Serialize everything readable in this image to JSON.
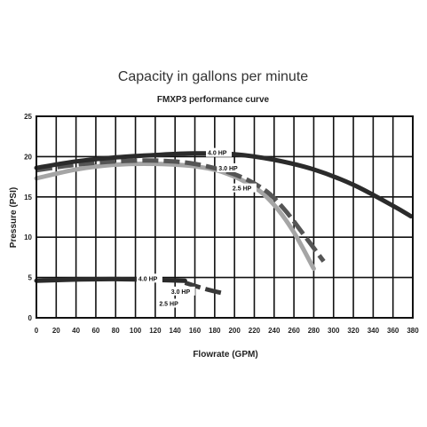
{
  "chart_data": {
    "type": "line",
    "title": "Capacity in gallons per minute",
    "subtitle": "FMXP3 performance curve",
    "xlabel": "Flowrate (GPM)",
    "ylabel": "Pressure (PSI)",
    "xlim": [
      0,
      380
    ],
    "ylim": [
      0,
      25
    ],
    "x_ticks": [
      0,
      20,
      40,
      60,
      80,
      100,
      120,
      140,
      160,
      180,
      200,
      220,
      240,
      260,
      280,
      300,
      320,
      340,
      360,
      380
    ],
    "y_ticks": [
      0,
      5,
      10,
      15,
      20,
      25
    ],
    "grid": true,
    "series": [
      {
        "name": "4.0 HP",
        "group": "pressure",
        "color": "#2b2b2b",
        "dash": false,
        "x": [
          0,
          40,
          80,
          120,
          160,
          200,
          240,
          280,
          320,
          360,
          378
        ],
        "y": [
          18.6,
          19.4,
          19.9,
          20.2,
          20.4,
          20.3,
          19.6,
          18.4,
          16.5,
          13.9,
          12.6
        ]
      },
      {
        "name": "3.0 HP",
        "group": "pressure",
        "color": "#555555",
        "dash": true,
        "x": [
          0,
          40,
          80,
          120,
          160,
          200,
          230,
          250,
          270,
          290
        ],
        "y": [
          18.3,
          19.0,
          19.4,
          19.5,
          19.1,
          17.8,
          15.9,
          13.5,
          10.3,
          7.0
        ]
      },
      {
        "name": "2.5 HP",
        "group": "pressure",
        "color": "#a5a5a5",
        "dash": false,
        "x": [
          0,
          40,
          80,
          120,
          160,
          190,
          220,
          240,
          260,
          280
        ],
        "y": [
          17.3,
          18.4,
          19.0,
          19.1,
          18.8,
          18.0,
          16.2,
          14.0,
          10.6,
          6.1
        ]
      },
      {
        "name": "4.0 HP",
        "group": "power",
        "color": "#2b2b2b",
        "dash": false,
        "x": [
          0,
          40,
          80,
          120,
          150
        ],
        "y": [
          4.6,
          4.75,
          4.8,
          4.7,
          4.6
        ]
      },
      {
        "name": "3.0 HP",
        "group": "power",
        "color": "#3a3a3a",
        "dash": true,
        "x": [
          150,
          170,
          190
        ],
        "y": [
          4.35,
          3.6,
          3.0
        ]
      }
    ],
    "labels": [
      {
        "text": "4.0 HP",
        "x": 173,
        "y": 20.3
      },
      {
        "text": "3.0 HP",
        "x": 184,
        "y": 18.4
      },
      {
        "text": "2.5 HP",
        "x": 198,
        "y": 15.9
      },
      {
        "text": "4.0 HP",
        "x": 103,
        "y": 4.7
      },
      {
        "text": "3.0 HP",
        "x": 136,
        "y": 3.1
      },
      {
        "text": "2.5 HP",
        "x": 124,
        "y": 1.6
      }
    ]
  }
}
